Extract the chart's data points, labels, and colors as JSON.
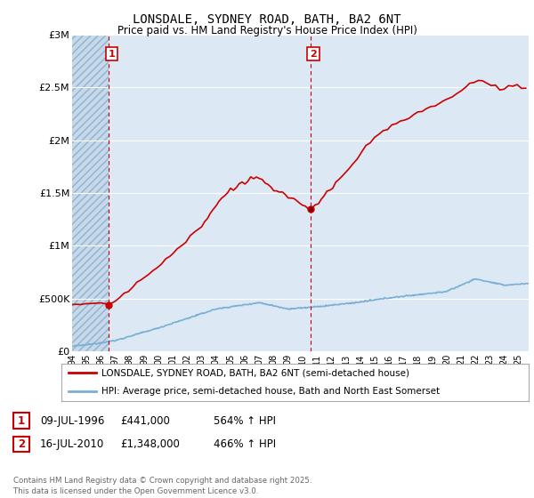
{
  "title": "LONSDALE, SYDNEY ROAD, BATH, BA2 6NT",
  "subtitle": "Price paid vs. HM Land Registry's House Price Index (HPI)",
  "legend_line1": "LONSDALE, SYDNEY ROAD, BATH, BA2 6NT (semi-detached house)",
  "legend_line2": "HPI: Average price, semi-detached house, Bath and North East Somerset",
  "annotation1_date": "09-JUL-1996",
  "annotation1_price": "£441,000",
  "annotation1_hpi": "564% ↑ HPI",
  "annotation2_date": "16-JUL-2010",
  "annotation2_price": "£1,348,000",
  "annotation2_hpi": "466% ↑ HPI",
  "footer": "Contains HM Land Registry data © Crown copyright and database right 2025.\nThis data is licensed under the Open Government Licence v3.0.",
  "price_color": "#cc0000",
  "hpi_color": "#7aafd4",
  "background_color": "#ffffff",
  "plot_bg_color": "#dce9f5",
  "grid_color": "#ffffff",
  "ylim": [
    0,
    3000000
  ],
  "yticks": [
    0,
    500000,
    1000000,
    1500000,
    2000000,
    2500000,
    3000000
  ],
  "ytick_labels": [
    "£0",
    "£500K",
    "£1M",
    "£1.5M",
    "£2M",
    "£2.5M",
    "£3M"
  ],
  "sale1_year": 1996.53,
  "sale1_price": 441000,
  "sale2_year": 2010.54,
  "sale2_price": 1348000,
  "dashed_x1": 1996.53,
  "dashed_x2": 2010.54,
  "xmin": 1994.0,
  "xmax": 2025.7
}
